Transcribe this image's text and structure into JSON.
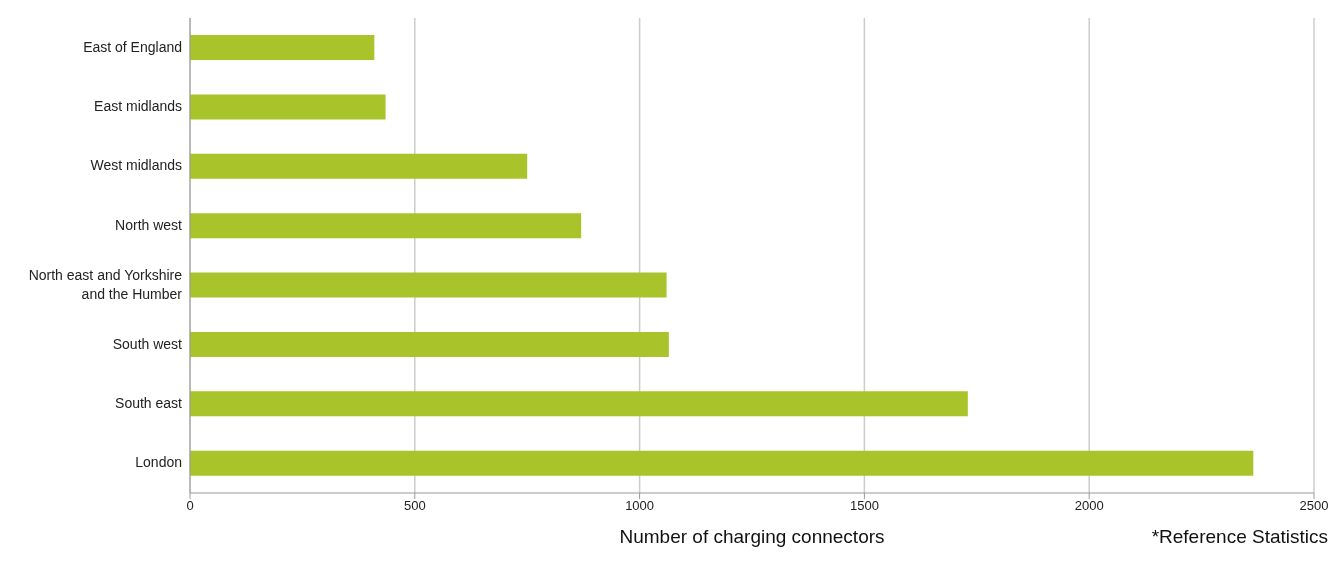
{
  "chart_data": {
    "type": "bar",
    "orientation": "horizontal",
    "categories": [
      "East of England",
      "East midlands",
      "West midlands",
      "North west",
      "North east and Yorkshire and the Humber",
      "South west",
      "South east",
      "London"
    ],
    "values": [
      410,
      435,
      750,
      870,
      1060,
      1065,
      1730,
      2365
    ],
    "color": "#a9c32a",
    "xlim": [
      0,
      2500
    ],
    "xticks": [
      0,
      500,
      1000,
      1500,
      2000,
      2500
    ],
    "xlabel": "Number of charging connectors",
    "annotations": [
      "*Reference Statistics"
    ],
    "grid": "x",
    "legend": false
  }
}
